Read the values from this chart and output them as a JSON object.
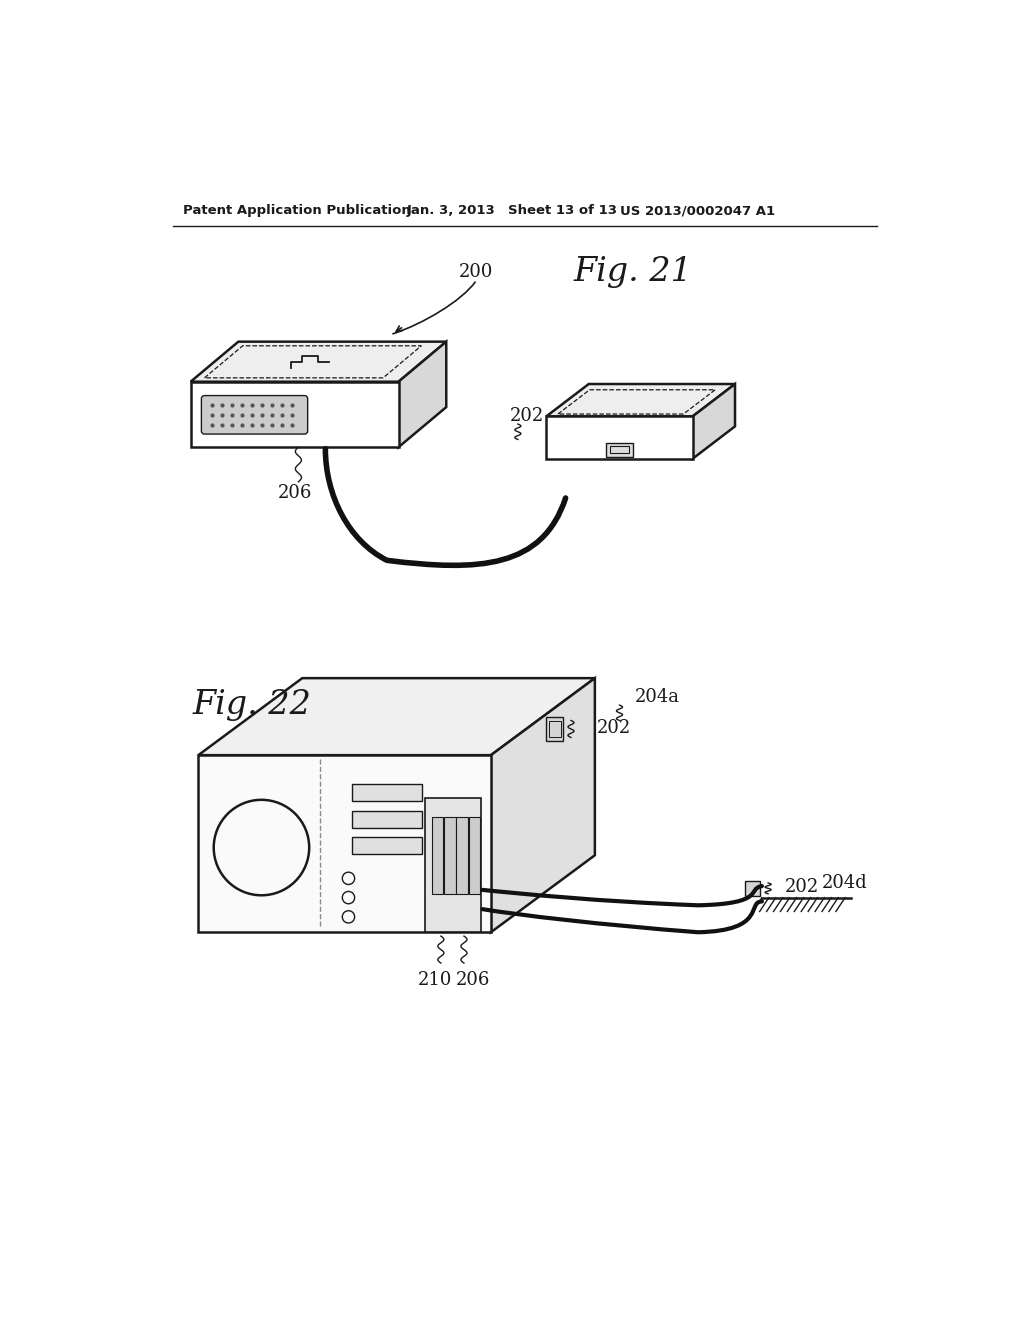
{
  "background_color": "#ffffff",
  "header_text": "Patent Application Publication",
  "header_date": "Jan. 3, 2013",
  "header_sheet": "Sheet 13 of 13",
  "header_patent": "US 2013/0002047 A1",
  "fig21_label": "Fig. 21",
  "fig22_label": "Fig. 22",
  "label_200": "200",
  "label_202_fig21": "202",
  "label_206_fig21": "206",
  "label_204a": "204a",
  "label_202_fig22_top": "202",
  "label_202_fig22_bot": "202",
  "label_204d": "204d",
  "label_210": "210",
  "label_206_fig22": "206",
  "line_color": "#1a1a1a",
  "face_color_light": "#f5f5f5",
  "face_color_mid": "#e8e8e8",
  "face_color_dark": "#d8d8d8"
}
